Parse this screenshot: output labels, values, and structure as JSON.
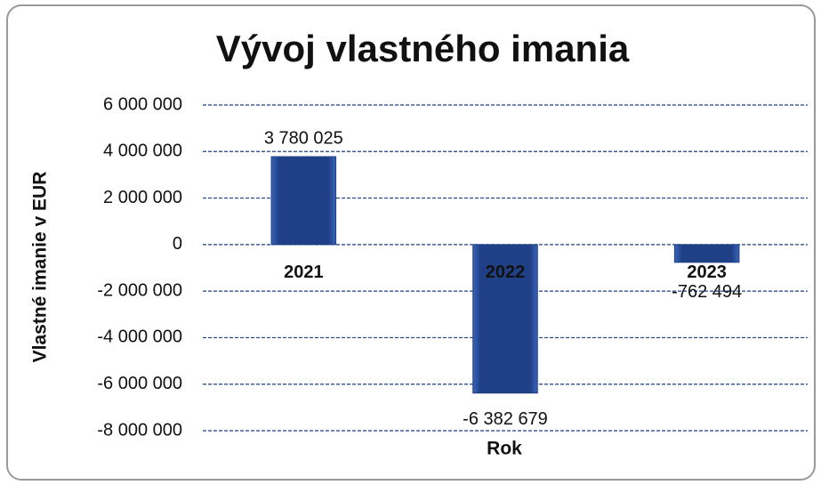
{
  "chart_data": {
    "type": "bar",
    "title": "Vývoj vlastného imania",
    "y_label": "Vlastné imanie v EUR",
    "x_label": "Rok",
    "categories": [
      "2021",
      "2022",
      "2023"
    ],
    "values": [
      3780025,
      -6382679,
      -762494
    ],
    "value_labels": [
      "3 780 025",
      "-6 382 679",
      "-762 494"
    ],
    "color": "#1f3f86",
    "ylim": [
      -8000000,
      6000000
    ],
    "yticks": [
      {
        "value": -8000000,
        "label": "-8 000 000"
      },
      {
        "value": -6000000,
        "label": "-6 000 000"
      },
      {
        "value": -4000000,
        "label": "-4 000 000"
      },
      {
        "value": -2000000,
        "label": "-2 000 000"
      },
      0,
      {
        "value": 2000000,
        "label": "2 000 000"
      },
      {
        "value": 4000000,
        "label": "4 000 000"
      },
      {
        "value": 6000000,
        "label": "6 000 000"
      }
    ],
    "grid": true
  }
}
